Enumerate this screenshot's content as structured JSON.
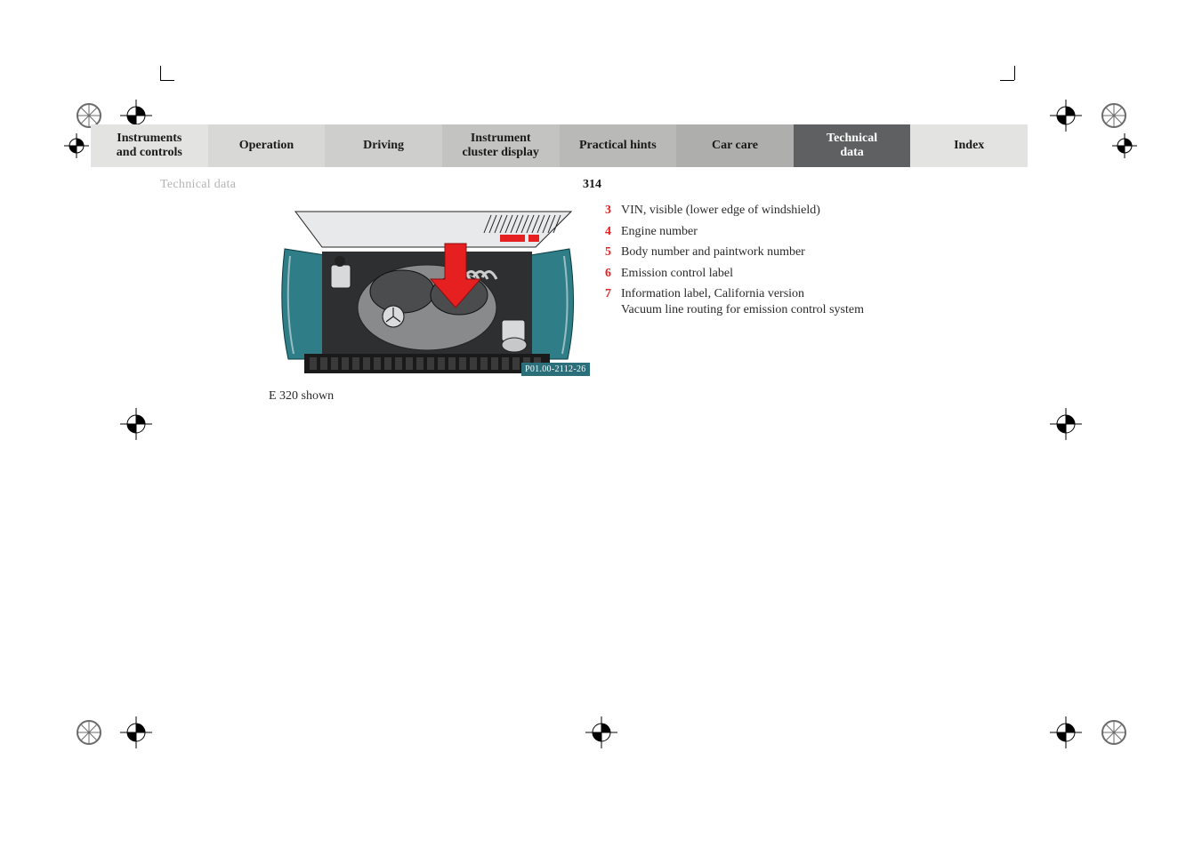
{
  "nav": {
    "tabs": [
      {
        "line1": "Instruments",
        "line2": "and controls",
        "bg": "#e3e3e1",
        "bold": true
      },
      {
        "line1": "Operation",
        "line2": "",
        "bg": "#d8d8d6",
        "bold": true
      },
      {
        "line1": "Driving",
        "line2": "",
        "bg": "#cececc",
        "bold": true
      },
      {
        "line1": "Instrument",
        "line2": "cluster display",
        "bg": "#c3c3c1",
        "bold": true
      },
      {
        "line1": "Practical hints",
        "line2": "",
        "bg": "#b9b9b7",
        "bold": true
      },
      {
        "line1": "Car care",
        "line2": "",
        "bg": "#aeaead",
        "bold": true
      },
      {
        "line1": "Technical",
        "line2": "data",
        "bg": "#5f6061",
        "bold": true,
        "selected": true
      },
      {
        "line1": "Index",
        "line2": "",
        "bg": "#e3e3e1",
        "bold": true
      }
    ]
  },
  "section_header": "Technical data",
  "page_number": "314",
  "figure": {
    "caption": "E 320 shown",
    "tag": "P01.00-2112-26",
    "arrow_color": "#e62020",
    "body_color": "#2f7d87",
    "engine_gray": "#888a8c",
    "engine_dark": "#4a4c4e",
    "grille_color": "#1a1a1a",
    "badge_fill": "#d9dbdc",
    "highlight": "#ffffff"
  },
  "legend": [
    {
      "n": "3",
      "text": "VIN, visible (lower edge of windshield)"
    },
    {
      "n": "4",
      "text": "Engine number"
    },
    {
      "n": "5",
      "text": "Body number and paintwork number"
    },
    {
      "n": "6",
      "text": "Emission control label"
    },
    {
      "n": "7",
      "text": "Information label, California version\nVacuum line routing for emission control system"
    }
  ],
  "colors": {
    "legend_num": "#e62020",
    "section_header": "#b5b4b2",
    "text": "#2a2a2a",
    "page_bg": "#ffffff"
  }
}
